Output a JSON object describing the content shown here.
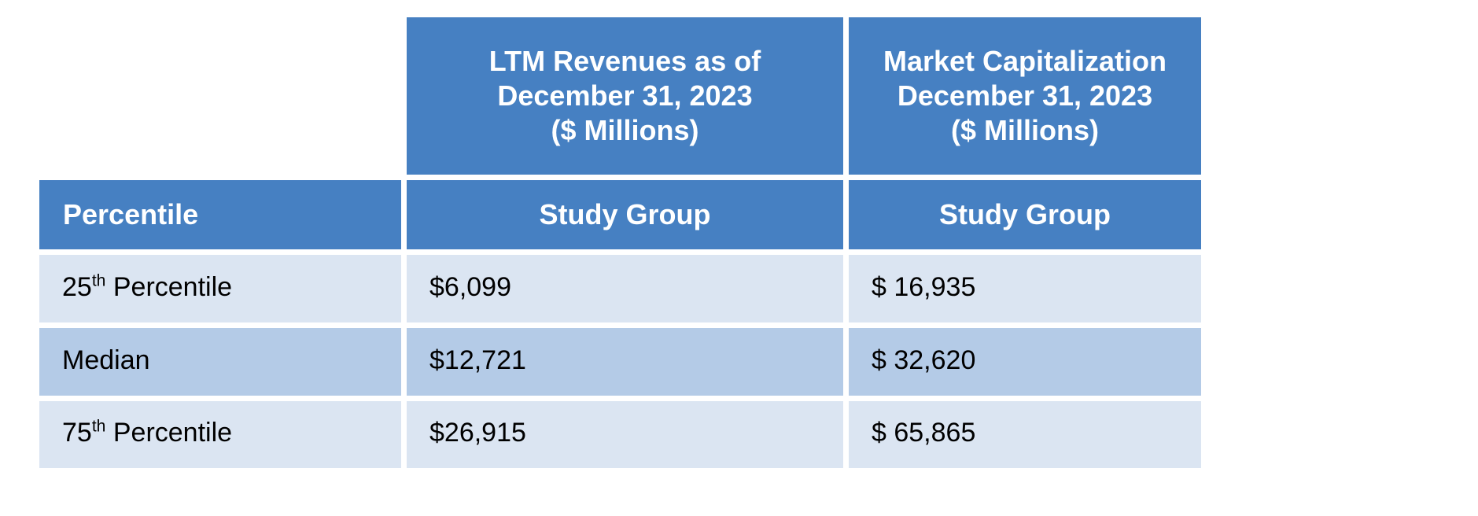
{
  "table": {
    "top_headers": [
      {
        "id": "ltm-revenues",
        "text": "LTM Revenues as of\nDecember 31, 2023\n($ Millions)"
      },
      {
        "id": "market-cap",
        "text": "Market Capitalization\nDecember 31, 2023\n($ Millions)"
      }
    ],
    "column_headers": {
      "percentile": "Percentile",
      "study_group_1": "Study Group",
      "study_group_2": "Study Group"
    },
    "rows": [
      {
        "label": {
          "pre": "25",
          "sup": "th",
          "post": " Percentile"
        },
        "ltm_revenue": "$6,099",
        "market_cap": "$ 16,935"
      },
      {
        "label": {
          "pre": "Median",
          "sup": "",
          "post": ""
        },
        "ltm_revenue": "$12,721",
        "market_cap": "$ 32,620"
      },
      {
        "label": {
          "pre": "75",
          "sup": "th",
          "post": " Percentile"
        },
        "ltm_revenue": "$26,915",
        "market_cap": "$ 65,865"
      }
    ],
    "colors": {
      "header_blue": "#4680C2",
      "row_light": "#DBE5F2",
      "row_medium": "#B4CBE7",
      "header_text": "#FFFFFF",
      "body_text": "#000000"
    }
  }
}
